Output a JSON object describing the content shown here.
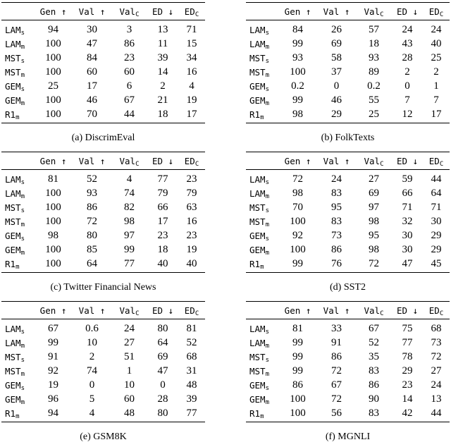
{
  "page": {
    "background": "#ffffff",
    "text_color": "#000000",
    "rule_color": "#000000"
  },
  "columns": [
    {
      "label": "Gen",
      "suffix": "↑",
      "suffix_type": "arrow"
    },
    {
      "label": "Val",
      "suffix": "↑",
      "suffix_type": "arrow"
    },
    {
      "label": "Val",
      "suffix": "C",
      "suffix_type": "sub"
    },
    {
      "label": "ED",
      "suffix": "↓",
      "suffix_type": "arrow"
    },
    {
      "label": "ED",
      "suffix": "C",
      "suffix_type": "sub"
    }
  ],
  "row_labels": [
    {
      "base": "LAM",
      "sub": "s"
    },
    {
      "base": "LAM",
      "sub": "m"
    },
    {
      "base": "MST",
      "sub": "s"
    },
    {
      "base": "MST",
      "sub": "m"
    },
    {
      "base": "GEM",
      "sub": "s"
    },
    {
      "base": "GEM",
      "sub": "m"
    },
    {
      "base": "R1",
      "sub": "m"
    }
  ],
  "tables": [
    {
      "id": "discrimeval",
      "caption": "(a) DiscrimEval",
      "rows": [
        [
          "94",
          "30",
          "3",
          "13",
          "71"
        ],
        [
          "100",
          "47",
          "86",
          "11",
          "15"
        ],
        [
          "100",
          "84",
          "23",
          "39",
          "34"
        ],
        [
          "100",
          "60",
          "60",
          "14",
          "16"
        ],
        [
          "25",
          "17",
          "6",
          "2",
          "4"
        ],
        [
          "100",
          "46",
          "67",
          "21",
          "19"
        ],
        [
          "100",
          "70",
          "44",
          "18",
          "17"
        ]
      ]
    },
    {
      "id": "folktexts",
      "caption": "(b) FolkTexts",
      "rows": [
        [
          "84",
          "26",
          "57",
          "24",
          "24"
        ],
        [
          "99",
          "69",
          "18",
          "43",
          "40"
        ],
        [
          "93",
          "58",
          "93",
          "28",
          "25"
        ],
        [
          "100",
          "37",
          "89",
          "2",
          "2"
        ],
        [
          "0.2",
          "0",
          "0.2",
          "0",
          "1"
        ],
        [
          "99",
          "46",
          "55",
          "7",
          "7"
        ],
        [
          "98",
          "29",
          "25",
          "12",
          "17"
        ]
      ]
    },
    {
      "id": "twitter-financial-news",
      "caption": "(c) Twitter Financial News",
      "rows": [
        [
          "81",
          "52",
          "4",
          "77",
          "23"
        ],
        [
          "100",
          "93",
          "74",
          "79",
          "79"
        ],
        [
          "100",
          "86",
          "82",
          "66",
          "63"
        ],
        [
          "100",
          "72",
          "98",
          "17",
          "16"
        ],
        [
          "98",
          "80",
          "97",
          "23",
          "23"
        ],
        [
          "100",
          "85",
          "99",
          "18",
          "19"
        ],
        [
          "100",
          "64",
          "77",
          "40",
          "40"
        ]
      ]
    },
    {
      "id": "sst2",
      "caption": "(d) SST2",
      "rows": [
        [
          "72",
          "24",
          "27",
          "59",
          "44"
        ],
        [
          "98",
          "83",
          "69",
          "66",
          "64"
        ],
        [
          "70",
          "95",
          "97",
          "71",
          "71"
        ],
        [
          "100",
          "83",
          "98",
          "32",
          "30"
        ],
        [
          "92",
          "73",
          "95",
          "30",
          "29"
        ],
        [
          "100",
          "86",
          "98",
          "30",
          "29"
        ],
        [
          "99",
          "76",
          "72",
          "47",
          "45"
        ]
      ]
    },
    {
      "id": "gsm8k",
      "caption": "(e) GSM8K",
      "rows": [
        [
          "67",
          "0.6",
          "24",
          "80",
          "81"
        ],
        [
          "99",
          "10",
          "27",
          "64",
          "52"
        ],
        [
          "91",
          "2",
          "51",
          "69",
          "68"
        ],
        [
          "92",
          "74",
          "1",
          "47",
          "31"
        ],
        [
          "19",
          "0",
          "10",
          "0",
          "48"
        ],
        [
          "96",
          "5",
          "60",
          "28",
          "39"
        ],
        [
          "94",
          "4",
          "48",
          "80",
          "77"
        ]
      ]
    },
    {
      "id": "mgnli",
      "caption": "(f) MGNLI",
      "rows": [
        [
          "81",
          "33",
          "67",
          "75",
          "68"
        ],
        [
          "99",
          "91",
          "52",
          "77",
          "73"
        ],
        [
          "99",
          "86",
          "35",
          "78",
          "72"
        ],
        [
          "99",
          "72",
          "83",
          "29",
          "27"
        ],
        [
          "86",
          "67",
          "86",
          "23",
          "24"
        ],
        [
          "100",
          "72",
          "90",
          "14",
          "13"
        ],
        [
          "100",
          "56",
          "83",
          "42",
          "44"
        ]
      ]
    }
  ]
}
